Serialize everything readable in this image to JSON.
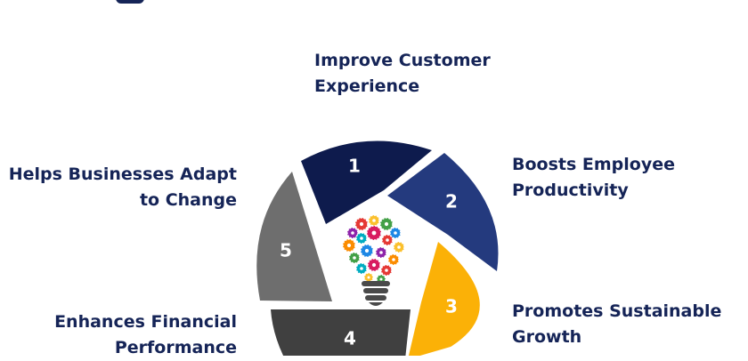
{
  "steps": [
    {
      "number": "1",
      "label_lines": [
        "Improve Customer",
        "Experience"
      ],
      "color": "#0e1b4d"
    },
    {
      "number": "2",
      "label_lines": [
        "Boosts Employee",
        "Productivity"
      ],
      "color": "#243a7e"
    },
    {
      "number": "3",
      "label_lines": [
        "Promotes Sustainable",
        "Growth"
      ],
      "color": "#fbb107"
    },
    {
      "number": "4",
      "label_lines": [
        "Enhances Financial",
        "Performance"
      ],
      "color": "#404040"
    },
    {
      "number": "5",
      "label_lines": [
        "Helps Businesses Adapt",
        "to Change"
      ],
      "color": "#6e6e6e"
    }
  ],
  "colors": {
    "label_text": "#152457",
    "bulb_base": "#4a4a4a"
  }
}
